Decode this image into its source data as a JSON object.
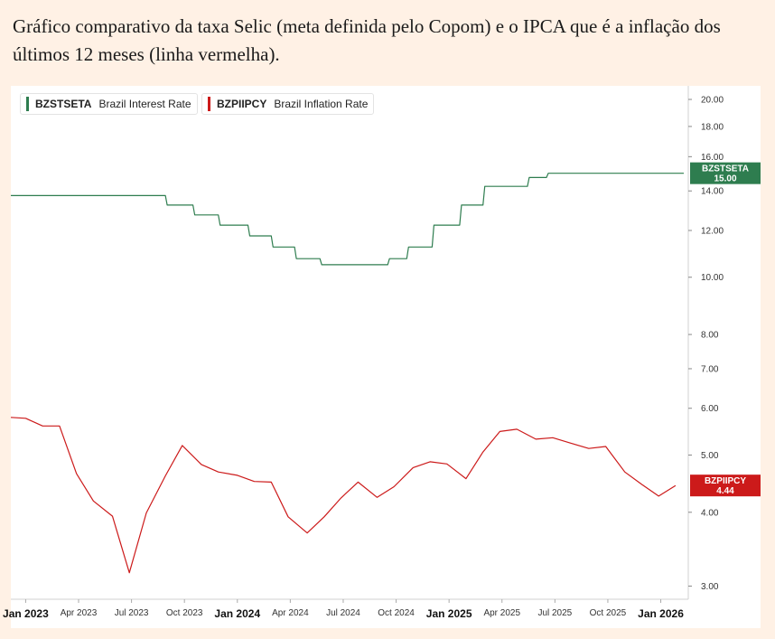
{
  "caption": "Gráfico comparativo da taxa Selic (meta definida pelo Copom) e o IPCA que é a inflação dos últimos 12 meses (linha vermelha).",
  "chart_data": {
    "type": "line",
    "yscale": "log",
    "ylim": [
      2.85,
      20.5
    ],
    "y_ticks": [
      {
        "value": 20.0,
        "label": "20.00"
      },
      {
        "value": 18.0,
        "label": "18.00"
      },
      {
        "value": 16.0,
        "label": "16.00"
      },
      {
        "value": 14.0,
        "label": "14.00"
      },
      {
        "value": 12.0,
        "label": "12.00"
      },
      {
        "value": 10.0,
        "label": "10.00"
      },
      {
        "value": 8.0,
        "label": "8.00"
      },
      {
        "value": 7.0,
        "label": "7.00"
      },
      {
        "value": 6.0,
        "label": "6.00"
      },
      {
        "value": 5.0,
        "label": "5.00"
      },
      {
        "value": 4.0,
        "label": "4.00"
      },
      {
        "value": 3.0,
        "label": "3.00"
      }
    ],
    "x_range": [
      2022.93,
      2026.13
    ],
    "x_ticks": [
      {
        "x": 2023.0,
        "label": "Jan 2023",
        "major": true
      },
      {
        "x": 2023.25,
        "label": "Apr 2023",
        "major": false
      },
      {
        "x": 2023.5,
        "label": "Jul 2023",
        "major": false
      },
      {
        "x": 2023.75,
        "label": "Oct 2023",
        "major": false
      },
      {
        "x": 2024.0,
        "label": "Jan 2024",
        "major": true
      },
      {
        "x": 2024.25,
        "label": "Apr 2024",
        "major": false
      },
      {
        "x": 2024.5,
        "label": "Jul 2024",
        "major": false
      },
      {
        "x": 2024.75,
        "label": "Oct 2024",
        "major": false
      },
      {
        "x": 2025.0,
        "label": "Jan 2025",
        "major": true
      },
      {
        "x": 2025.25,
        "label": "Apr 2025",
        "major": false
      },
      {
        "x": 2025.5,
        "label": "Jul 2025",
        "major": false
      },
      {
        "x": 2025.75,
        "label": "Oct 2025",
        "major": false
      },
      {
        "x": 2026.0,
        "label": "Jan 2026",
        "major": true
      }
    ],
    "series": [
      {
        "code": "BZSTSETA",
        "name": "Brazil Interest Rate",
        "color": "#2e7d4f",
        "last_value": 15.0,
        "last_label": "15.00",
        "step": true,
        "points": [
          [
            2022.93,
            13.75
          ],
          [
            2023.66,
            13.25
          ],
          [
            2023.79,
            12.75
          ],
          [
            2023.91,
            12.25
          ],
          [
            2024.05,
            11.75
          ],
          [
            2024.16,
            11.25
          ],
          [
            2024.27,
            10.75
          ],
          [
            2024.39,
            10.5
          ],
          [
            2024.71,
            10.75
          ],
          [
            2024.8,
            11.25
          ],
          [
            2024.92,
            12.25
          ],
          [
            2025.05,
            13.25
          ],
          [
            2025.16,
            14.25
          ],
          [
            2025.37,
            14.75
          ],
          [
            2025.46,
            15.0
          ],
          [
            2026.1,
            15.0
          ]
        ]
      },
      {
        "code": "BZPIIPCY",
        "name": "Brazil Inflation Rate",
        "color": "#cc1a1a",
        "last_value": 4.44,
        "last_label": "4.44",
        "step": false,
        "points": [
          [
            2022.93,
            5.79
          ],
          [
            2023.0,
            5.77
          ],
          [
            2023.08,
            5.6
          ],
          [
            2023.16,
            5.6
          ],
          [
            2023.24,
            4.65
          ],
          [
            2023.32,
            4.18
          ],
          [
            2023.41,
            3.94
          ],
          [
            2023.49,
            3.16
          ],
          [
            2023.57,
            3.99
          ],
          [
            2023.66,
            4.61
          ],
          [
            2023.74,
            5.19
          ],
          [
            2023.83,
            4.82
          ],
          [
            2023.91,
            4.68
          ],
          [
            2024.0,
            4.62
          ],
          [
            2024.08,
            4.51
          ],
          [
            2024.16,
            4.5
          ],
          [
            2024.24,
            3.93
          ],
          [
            2024.33,
            3.69
          ],
          [
            2024.41,
            3.93
          ],
          [
            2024.49,
            4.23
          ],
          [
            2024.57,
            4.5
          ],
          [
            2024.66,
            4.24
          ],
          [
            2024.74,
            4.42
          ],
          [
            2024.83,
            4.76
          ],
          [
            2024.91,
            4.87
          ],
          [
            2024.99,
            4.83
          ],
          [
            2025.08,
            4.56
          ],
          [
            2025.16,
            5.06
          ],
          [
            2025.24,
            5.48
          ],
          [
            2025.32,
            5.53
          ],
          [
            2025.41,
            5.32
          ],
          [
            2025.49,
            5.35
          ],
          [
            2025.58,
            5.23
          ],
          [
            2025.66,
            5.13
          ],
          [
            2025.74,
            5.17
          ],
          [
            2025.83,
            4.68
          ],
          [
            2025.91,
            4.46
          ],
          [
            2025.99,
            4.26
          ],
          [
            2026.07,
            4.44
          ]
        ]
      }
    ]
  }
}
